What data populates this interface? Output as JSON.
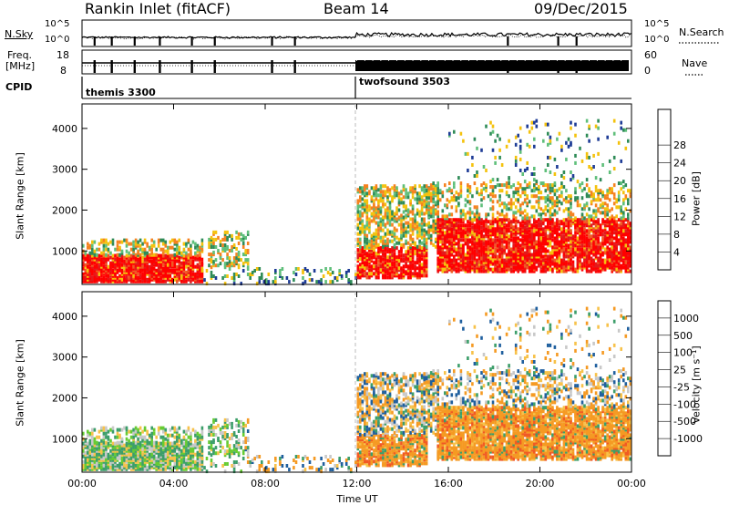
{
  "header": {
    "station": "Rankin Inlet (fitACF)",
    "beam": "Beam 14",
    "date": "09/Dec/2015"
  },
  "noise_panel": {
    "left_label": "N.Sky",
    "right_label": "N.Search",
    "left_ticks": [
      "10^5",
      "10^0"
    ],
    "right_ticks": [
      "10^5",
      "10^0"
    ]
  },
  "freq_panel": {
    "left_label_top": "Freq.",
    "left_label_bottom": "[MHz]",
    "right_label": "Nave",
    "left_ticks": [
      "18",
      "8"
    ],
    "right_ticks": [
      "60",
      "0"
    ]
  },
  "cpid": {
    "label": "CPID",
    "modes": [
      {
        "name": "themis 3300",
        "start_hour": 0
      },
      {
        "name": "twofsound 3503",
        "start_hour": 12
      }
    ]
  },
  "colors": {
    "power": [
      "#0000ff",
      "#1e3c96",
      "#2e8b57",
      "#5fbf7a",
      "#f4c20d",
      "#f58220",
      "#f15a24",
      "#e31a1c",
      "#ff0000"
    ],
    "velocity": [
      "#ff0000",
      "#f15a24",
      "#f59a23",
      "#f7c24a",
      "#c8c8c8",
      "#66cc33",
      "#3c9e6a",
      "#1f5f9e",
      "#1c3fc8"
    ]
  },
  "chart_data": [
    {
      "type": "heatmap",
      "name": "power",
      "xlabel": "",
      "ylabel": "Slant Range [km]",
      "xlim": [
        0,
        24
      ],
      "ylim": [
        180,
        4600
      ],
      "yticks": [
        1000,
        2000,
        3000,
        4000
      ],
      "colorbar_label": "Power [dB]",
      "colorbar_ticks": [
        "4",
        "8",
        "12",
        "16",
        "20",
        "24",
        "28"
      ],
      "colorbar_range": [
        0,
        32
      ]
    },
    {
      "type": "heatmap",
      "name": "velocity",
      "xlabel": "Time UT",
      "ylabel": "Slant Range [km]",
      "xlim": [
        0,
        24
      ],
      "ylim": [
        180,
        4600
      ],
      "xticks": [
        "00:00",
        "04:00",
        "08:00",
        "12:00",
        "16:00",
        "20:00",
        "00:00"
      ],
      "yticks": [
        1000,
        2000,
        3000,
        4000
      ],
      "colorbar_label": "Velocity [m s⁻¹]",
      "colorbar_ticks": [
        "-1000",
        "-500",
        "-100",
        "-25",
        "25",
        "100",
        "500",
        "1000"
      ]
    }
  ]
}
